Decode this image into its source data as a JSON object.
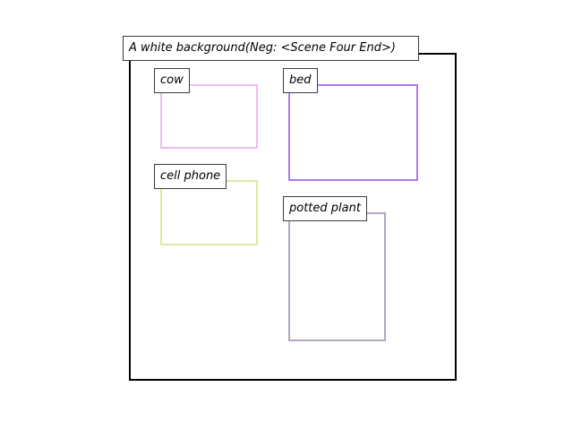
{
  "scene": {
    "caption": "A white background(Neg: <Scene Four End>)"
  },
  "objects": [
    {
      "key": "cow",
      "label": "cow",
      "color": "#eebcee"
    },
    {
      "key": "bed",
      "label": "bed",
      "color": "#b07ae6"
    },
    {
      "key": "cell_phone",
      "label": "cell phone",
      "color": "#dde8a0"
    },
    {
      "key": "potted_plant",
      "label": "potted plant",
      "color": "#b3a6c0"
    }
  ]
}
